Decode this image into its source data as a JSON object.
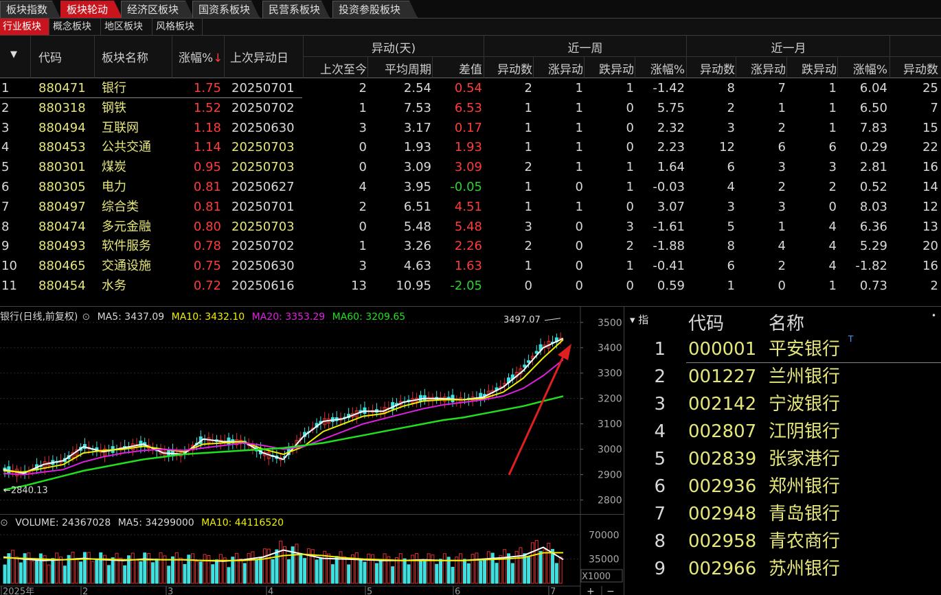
{
  "top_tabs": [
    {
      "label": "板块指数",
      "active": false
    },
    {
      "label": "板块轮动",
      "active": true
    },
    {
      "label": "经济区板块",
      "active": false
    },
    {
      "label": "国资系板块",
      "active": false
    },
    {
      "label": "民营系板块",
      "active": false
    },
    {
      "label": "投资参股板块",
      "active": false
    }
  ],
  "sub_tabs": [
    {
      "label": "行业板块",
      "active": true
    },
    {
      "label": "概念板块",
      "active": false
    },
    {
      "label": "地区板块",
      "active": false
    },
    {
      "label": "风格板块",
      "active": false
    }
  ],
  "table": {
    "sort_arrow": "▼",
    "headers": {
      "code": "代码",
      "name": "板块名称",
      "change": "涨幅%",
      "change_sort_icon": "↓",
      "last_date": "上次异动日",
      "group_days": "异动(天)",
      "since_last": "上次至今",
      "avg_period": "平均周期",
      "diff": "差值",
      "group_week": "近一周",
      "group_month": "近一月",
      "count": "异动数",
      "up_count": "涨异动",
      "down_count": "跌异动",
      "pct": "涨幅%",
      "extra_count": "异动数"
    },
    "rows": [
      {
        "idx": "1",
        "code": "880471",
        "name": "银行",
        "change": "1.75",
        "last_date": "20250701",
        "date_hl": false,
        "since": "2",
        "avg": "2.54",
        "diff": "0.54",
        "diff_neg": false,
        "w_cnt": "2",
        "w_up": "1",
        "w_dn": "1",
        "w_pct": "-1.42",
        "m_cnt": "8",
        "m_up": "7",
        "m_dn": "1",
        "m_pct": "6.04",
        "x_cnt": "25"
      },
      {
        "idx": "2",
        "code": "880318",
        "name": "钢铁",
        "change": "1.52",
        "last_date": "20250702",
        "date_hl": false,
        "since": "1",
        "avg": "7.53",
        "diff": "6.53",
        "diff_neg": false,
        "w_cnt": "1",
        "w_up": "1",
        "w_dn": "0",
        "w_pct": "5.75",
        "m_cnt": "2",
        "m_up": "1",
        "m_dn": "1",
        "m_pct": "6.50",
        "x_cnt": "7"
      },
      {
        "idx": "3",
        "code": "880494",
        "name": "互联网",
        "change": "1.18",
        "last_date": "20250630",
        "date_hl": false,
        "since": "3",
        "avg": "3.17",
        "diff": "0.17",
        "diff_neg": false,
        "w_cnt": "1",
        "w_up": "1",
        "w_dn": "0",
        "w_pct": "2.32",
        "m_cnt": "3",
        "m_up": "2",
        "m_dn": "1",
        "m_pct": "7.83",
        "x_cnt": "15"
      },
      {
        "idx": "4",
        "code": "880453",
        "name": "公共交通",
        "change": "1.14",
        "last_date": "20250703",
        "date_hl": true,
        "since": "0",
        "avg": "1.93",
        "diff": "1.93",
        "diff_neg": false,
        "w_cnt": "1",
        "w_up": "1",
        "w_dn": "0",
        "w_pct": "2.23",
        "m_cnt": "12",
        "m_up": "6",
        "m_dn": "6",
        "m_pct": "0.29",
        "x_cnt": "22"
      },
      {
        "idx": "5",
        "code": "880301",
        "name": "煤炭",
        "change": "0.95",
        "last_date": "20250703",
        "date_hl": true,
        "since": "0",
        "avg": "3.09",
        "diff": "3.09",
        "diff_neg": false,
        "w_cnt": "2",
        "w_up": "1",
        "w_dn": "1",
        "w_pct": "1.64",
        "m_cnt": "6",
        "m_up": "3",
        "m_dn": "3",
        "m_pct": "2.81",
        "x_cnt": "16"
      },
      {
        "idx": "6",
        "code": "880305",
        "name": "电力",
        "change": "0.81",
        "last_date": "20250627",
        "date_hl": false,
        "since": "4",
        "avg": "3.95",
        "diff": "-0.05",
        "diff_neg": true,
        "w_cnt": "1",
        "w_up": "0",
        "w_dn": "1",
        "w_pct": "-0.03",
        "m_cnt": "4",
        "m_up": "2",
        "m_dn": "2",
        "m_pct": "0.52",
        "x_cnt": "14"
      },
      {
        "idx": "7",
        "code": "880497",
        "name": "综合类",
        "change": "0.81",
        "last_date": "20250701",
        "date_hl": false,
        "since": "2",
        "avg": "6.51",
        "diff": "4.51",
        "diff_neg": false,
        "w_cnt": "1",
        "w_up": "1",
        "w_dn": "0",
        "w_pct": "3.07",
        "m_cnt": "3",
        "m_up": "3",
        "m_dn": "0",
        "m_pct": "8.03",
        "x_cnt": "12"
      },
      {
        "idx": "8",
        "code": "880474",
        "name": "多元金融",
        "change": "0.80",
        "last_date": "20250703",
        "date_hl": true,
        "since": "0",
        "avg": "5.48",
        "diff": "5.48",
        "diff_neg": false,
        "w_cnt": "3",
        "w_up": "0",
        "w_dn": "3",
        "w_pct": "-1.61",
        "m_cnt": "5",
        "m_up": "1",
        "m_dn": "4",
        "m_pct": "6.36",
        "x_cnt": "13"
      },
      {
        "idx": "9",
        "code": "880493",
        "name": "软件服务",
        "change": "0.78",
        "last_date": "20250702",
        "date_hl": false,
        "since": "1",
        "avg": "3.26",
        "diff": "2.26",
        "diff_neg": false,
        "w_cnt": "2",
        "w_up": "0",
        "w_dn": "2",
        "w_pct": "-1.88",
        "m_cnt": "8",
        "m_up": "4",
        "m_dn": "4",
        "m_pct": "5.29",
        "x_cnt": "20"
      },
      {
        "idx": "10",
        "code": "880465",
        "name": "交通设施",
        "change": "0.75",
        "last_date": "20250630",
        "date_hl": false,
        "since": "3",
        "avg": "4.63",
        "diff": "1.63",
        "diff_neg": false,
        "w_cnt": "1",
        "w_up": "0",
        "w_dn": "1",
        "w_pct": "-0.41",
        "m_cnt": "6",
        "m_up": "2",
        "m_dn": "4",
        "m_pct": "-1.82",
        "x_cnt": "16"
      },
      {
        "idx": "11",
        "code": "880454",
        "name": "水务",
        "change": "0.72",
        "last_date": "20250616",
        "date_hl": false,
        "since": "13",
        "avg": "10.95",
        "diff": "-2.05",
        "diff_neg": true,
        "w_cnt": "0",
        "w_up": "0",
        "w_dn": "0",
        "w_pct": "0.59",
        "m_cnt": "1",
        "m_up": "0",
        "m_dn": "1",
        "m_pct": "0.73",
        "x_cnt": "2"
      }
    ]
  },
  "price_chart": {
    "title": "银行(日线,前复权)",
    "ma5": "MA5: 3437.09",
    "ma10": "MA10: 3432.10",
    "ma20": "MA20: 3353.29",
    "ma60": "MA60: 3209.65",
    "high_label": "3497.07",
    "low_label": "2840.13",
    "low_arrow": "←",
    "colors": {
      "ma5": "#ffffff",
      "ma10": "#f0f000",
      "ma20": "#e020e0",
      "ma60": "#20e020",
      "up": "#e03030",
      "down": "#40e0e0",
      "arrow": "#e02020"
    }
  },
  "volume_chart": {
    "volume": "VOLUME: 24367028",
    "ma5": "MA5: 34299000",
    "ma10": "MA10: 44116520",
    "multiplier": "X1000",
    "plus": "+",
    "minus": "−"
  },
  "chart_data": [
    {
      "type": "line",
      "title": "银行(日线,前复权)",
      "y_ticks": [
        "3500",
        "3400",
        "3300",
        "3200",
        "3100",
        "3000",
        "2900",
        "2800"
      ],
      "ylim": [
        2750,
        3540
      ],
      "x_ticks": [
        "2025年",
        "2",
        "3",
        "4",
        "5",
        "6",
        "7"
      ],
      "annotations": [
        "3497.07",
        "2840.13"
      ],
      "series": [
        {
          "name": "MA5",
          "values": [
            2920,
            2905,
            2940,
            2955,
            3010,
            2990,
            3005,
            3020,
            2985,
            2980,
            3040,
            3030,
            3030,
            2985,
            2960,
            3050,
            3110,
            3120,
            3150,
            3150,
            3185,
            3200,
            3200,
            3195,
            3205,
            3245,
            3310,
            3400,
            3437
          ]
        },
        {
          "name": "MA10",
          "values": [
            2915,
            2910,
            2925,
            2940,
            2985,
            2995,
            3000,
            3012,
            3000,
            2990,
            3020,
            3025,
            3030,
            3000,
            2980,
            3010,
            3070,
            3100,
            3130,
            3140,
            3170,
            3190,
            3195,
            3195,
            3200,
            3225,
            3280,
            3360,
            3432
          ]
        },
        {
          "name": "MA20",
          "values": [
            2905,
            2900,
            2910,
            2920,
            2950,
            2970,
            2985,
            2995,
            3000,
            2995,
            3005,
            3015,
            3025,
            3015,
            3000,
            3010,
            3040,
            3070,
            3100,
            3120,
            3140,
            3160,
            3175,
            3185,
            3195,
            3210,
            3240,
            3290,
            3353
          ]
        },
        {
          "name": "MA60",
          "values": [
            2840,
            2855,
            2875,
            2895,
            2915,
            2930,
            2945,
            2960,
            2970,
            2980,
            2985,
            2990,
            2995,
            3000,
            3005,
            3015,
            3025,
            3040,
            3055,
            3070,
            3085,
            3100,
            3115,
            3125,
            3140,
            3155,
            3170,
            3190,
            3209
          ]
        }
      ]
    },
    {
      "type": "bar",
      "title": "VOLUME: 24367028",
      "y_ticks": [
        "70000",
        "35000"
      ],
      "ylim": [
        0,
        95000
      ],
      "multiplier": "X1000",
      "series": [
        {
          "name": "MA5",
          "values": [
            38000,
            35000,
            33000,
            34000,
            36000,
            34000,
            33000,
            35000,
            34000,
            34000,
            33000,
            32000,
            34000,
            38000,
            48000,
            42000,
            36000,
            35000,
            34000,
            33000,
            33000,
            34000,
            33000,
            33000,
            35000,
            37000,
            40000,
            52000,
            34299
          ]
        },
        {
          "name": "MA10",
          "values": [
            37000,
            36000,
            35000,
            34000,
            35000,
            35000,
            34000,
            34000,
            34000,
            34000,
            33000,
            33000,
            33000,
            35000,
            40000,
            42000,
            40000,
            37000,
            35000,
            34000,
            33000,
            33000,
            33000,
            33000,
            34000,
            35000,
            37000,
            44000,
            44116
          ]
        }
      ]
    }
  ],
  "stock_panel": {
    "sort_label": "▾ 指",
    "dot": "•",
    "col_code": "代码",
    "col_name": "名称",
    "top_marker": "T",
    "rows": [
      {
        "idx": "1",
        "code": "000001",
        "name": "平安银行"
      },
      {
        "idx": "2",
        "code": "001227",
        "name": "兰州银行"
      },
      {
        "idx": "3",
        "code": "002142",
        "name": "宁波银行"
      },
      {
        "idx": "4",
        "code": "002807",
        "name": "江阴银行"
      },
      {
        "idx": "5",
        "code": "002839",
        "name": "张家港行"
      },
      {
        "idx": "6",
        "code": "002936",
        "name": "郑州银行"
      },
      {
        "idx": "7",
        "code": "002948",
        "name": "青岛银行"
      },
      {
        "idx": "8",
        "code": "002958",
        "name": "青农商行"
      },
      {
        "idx": "9",
        "code": "002966",
        "name": "苏州银行"
      }
    ]
  }
}
